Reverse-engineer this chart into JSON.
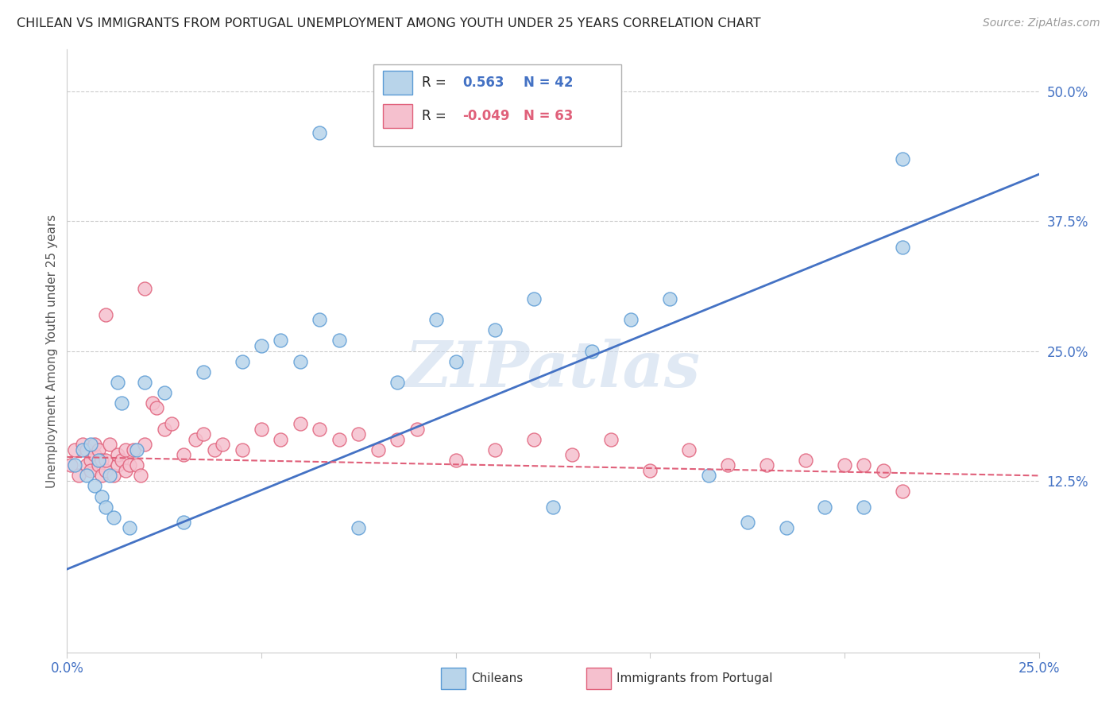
{
  "title": "CHILEAN VS IMMIGRANTS FROM PORTUGAL UNEMPLOYMENT AMONG YOUTH UNDER 25 YEARS CORRELATION CHART",
  "source": "Source: ZipAtlas.com",
  "ylabel": "Unemployment Among Youth under 25 years",
  "xlim": [
    0.0,
    0.25
  ],
  "ylim": [
    -0.04,
    0.54
  ],
  "ytick_positions": [
    0.125,
    0.25,
    0.375,
    0.5
  ],
  "ytick_labels": [
    "12.5%",
    "25.0%",
    "37.5%",
    "50.0%"
  ],
  "chilean_color": "#b8d4ea",
  "chilean_edge_color": "#5b9bd5",
  "portugal_color": "#f5c0ce",
  "portugal_edge_color": "#e0607a",
  "chilean_line_color": "#4472c4",
  "portugal_line_color": "#e0607a",
  "R_chilean": 0.563,
  "N_chilean": 42,
  "R_portugal": -0.049,
  "N_portugal": 63,
  "watermark": "ZIPatlas",
  "background_color": "#ffffff",
  "grid_color": "#cccccc",
  "tick_label_color": "#4472c4",
  "chilean_x": [
    0.002,
    0.004,
    0.005,
    0.006,
    0.007,
    0.008,
    0.009,
    0.01,
    0.011,
    0.012,
    0.013,
    0.014,
    0.016,
    0.018,
    0.02,
    0.025,
    0.03,
    0.035,
    0.045,
    0.05,
    0.055,
    0.06,
    0.065,
    0.07,
    0.075,
    0.085,
    0.095,
    0.1,
    0.11,
    0.12,
    0.125,
    0.135,
    0.145,
    0.155,
    0.165,
    0.175,
    0.185,
    0.195,
    0.205,
    0.215,
    0.065,
    0.215
  ],
  "chilean_y": [
    0.14,
    0.155,
    0.13,
    0.16,
    0.12,
    0.145,
    0.11,
    0.1,
    0.13,
    0.09,
    0.22,
    0.2,
    0.08,
    0.155,
    0.22,
    0.21,
    0.085,
    0.23,
    0.24,
    0.255,
    0.26,
    0.24,
    0.28,
    0.26,
    0.08,
    0.22,
    0.28,
    0.24,
    0.27,
    0.3,
    0.1,
    0.25,
    0.28,
    0.3,
    0.13,
    0.085,
    0.08,
    0.1,
    0.1,
    0.35,
    0.46,
    0.435
  ],
  "portugal_x": [
    0.001,
    0.002,
    0.003,
    0.004,
    0.005,
    0.005,
    0.006,
    0.006,
    0.007,
    0.007,
    0.008,
    0.008,
    0.009,
    0.009,
    0.01,
    0.01,
    0.011,
    0.012,
    0.013,
    0.013,
    0.014,
    0.015,
    0.015,
    0.016,
    0.017,
    0.018,
    0.019,
    0.02,
    0.022,
    0.023,
    0.025,
    0.027,
    0.03,
    0.033,
    0.035,
    0.038,
    0.04,
    0.045,
    0.05,
    0.055,
    0.06,
    0.065,
    0.07,
    0.075,
    0.08,
    0.085,
    0.09,
    0.1,
    0.11,
    0.12,
    0.13,
    0.14,
    0.15,
    0.16,
    0.17,
    0.18,
    0.19,
    0.2,
    0.205,
    0.21,
    0.01,
    0.02,
    0.215
  ],
  "portugal_y": [
    0.14,
    0.155,
    0.13,
    0.16,
    0.14,
    0.155,
    0.145,
    0.135,
    0.15,
    0.16,
    0.14,
    0.155,
    0.145,
    0.13,
    0.135,
    0.145,
    0.16,
    0.13,
    0.14,
    0.15,
    0.145,
    0.155,
    0.135,
    0.14,
    0.155,
    0.14,
    0.13,
    0.16,
    0.2,
    0.195,
    0.175,
    0.18,
    0.15,
    0.165,
    0.17,
    0.155,
    0.16,
    0.155,
    0.175,
    0.165,
    0.18,
    0.175,
    0.165,
    0.17,
    0.155,
    0.165,
    0.175,
    0.145,
    0.155,
    0.165,
    0.15,
    0.165,
    0.135,
    0.155,
    0.14,
    0.14,
    0.145,
    0.14,
    0.14,
    0.135,
    0.285,
    0.31,
    0.115
  ],
  "chilean_line_x": [
    0.0,
    0.25
  ],
  "chilean_line_y": [
    0.04,
    0.42
  ],
  "portugal_line_x": [
    0.0,
    0.25
  ],
  "portugal_line_y": [
    0.148,
    0.13
  ]
}
